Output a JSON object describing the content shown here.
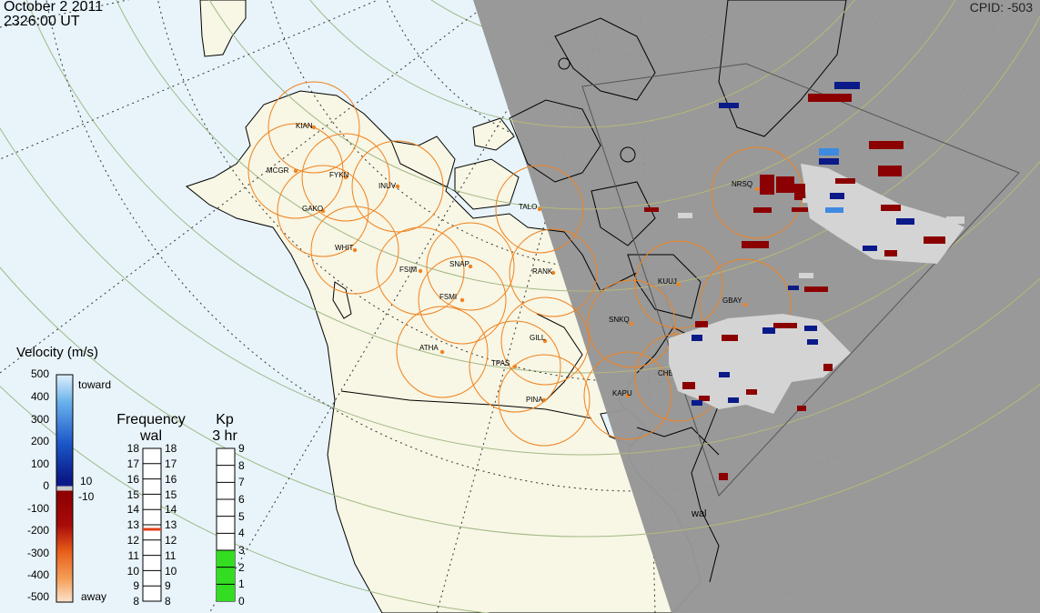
{
  "header": {
    "date": "October  2 2011",
    "time": "2326:00 UT",
    "cpid": "CPID:  -503"
  },
  "radar_label": "wal",
  "stations": [
    {
      "code": "KIAN"
    },
    {
      "code": "MCGR"
    },
    {
      "code": "FYKN"
    },
    {
      "code": "INUV"
    },
    {
      "code": "GAKO"
    },
    {
      "code": "WHIT"
    },
    {
      "code": "FSIM"
    },
    {
      "code": "SNAP"
    },
    {
      "code": "FSMI"
    },
    {
      "code": "TALO"
    },
    {
      "code": "RANK"
    },
    {
      "code": "ATHA"
    },
    {
      "code": "GILL"
    },
    {
      "code": "TPAS"
    },
    {
      "code": "PINA"
    },
    {
      "code": "SNKQ"
    },
    {
      "code": "KUUJ"
    },
    {
      "code": "GBAY"
    },
    {
      "code": "CHBG"
    },
    {
      "code": "KAPU"
    },
    {
      "code": "NRSQ"
    }
  ],
  "velocity_scale": {
    "title": "Velocity (m/s)",
    "ticks": [
      "500",
      "400",
      "300",
      "200",
      "100",
      "0",
      "-100",
      "-200",
      "-300",
      "-400",
      "-500"
    ],
    "toward": "toward",
    "away": "away",
    "gs_upper": "10",
    "gs_lower": "-10"
  },
  "frequency_scale": {
    "title": "Frequency",
    "subtitle": "wal",
    "ticks": [
      "18",
      "17",
      "16",
      "15",
      "14",
      "13",
      "12",
      "11",
      "10",
      "9",
      "8"
    ],
    "current_mhz": 12.7,
    "marker_color": "#e2401a"
  },
  "kp_scale": {
    "title": "Kp",
    "subtitle": "3 hr",
    "ticks": [
      "9",
      "8",
      "7",
      "6",
      "5",
      "4",
      "3",
      "2",
      "1",
      "0"
    ],
    "current": 3,
    "fill_color": "#33dd22"
  },
  "colors": {
    "ocean": "#e8f4fa",
    "land": "#f8f6e4",
    "night": "#969696",
    "fov_circle": "#f0821e",
    "grid": "#a0b986",
    "toward_strong": "#0a1a88",
    "away_strong": "#8b0000",
    "ground_scatter": "#d4d4d4"
  }
}
